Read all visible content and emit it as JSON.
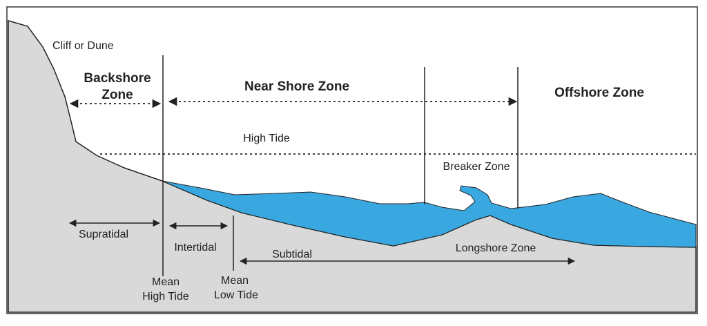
{
  "labels": {
    "cliff": "Cliff or Dune",
    "backshore": [
      "Backshore",
      "Zone"
    ],
    "nearshore": "Near Shore Zone",
    "offshore": "Offshore Zone",
    "high_tide": "High Tide",
    "breaker": "Breaker Zone",
    "supratidal": "Supratidal",
    "intertidal": "Intertidal",
    "subtidal": "Subtidal",
    "longshore": "Longshore Zone",
    "mean_high_tide": [
      "Mean",
      "High Tide"
    ],
    "mean_low_tide": [
      "Mean",
      "Low Tide"
    ]
  }
}
